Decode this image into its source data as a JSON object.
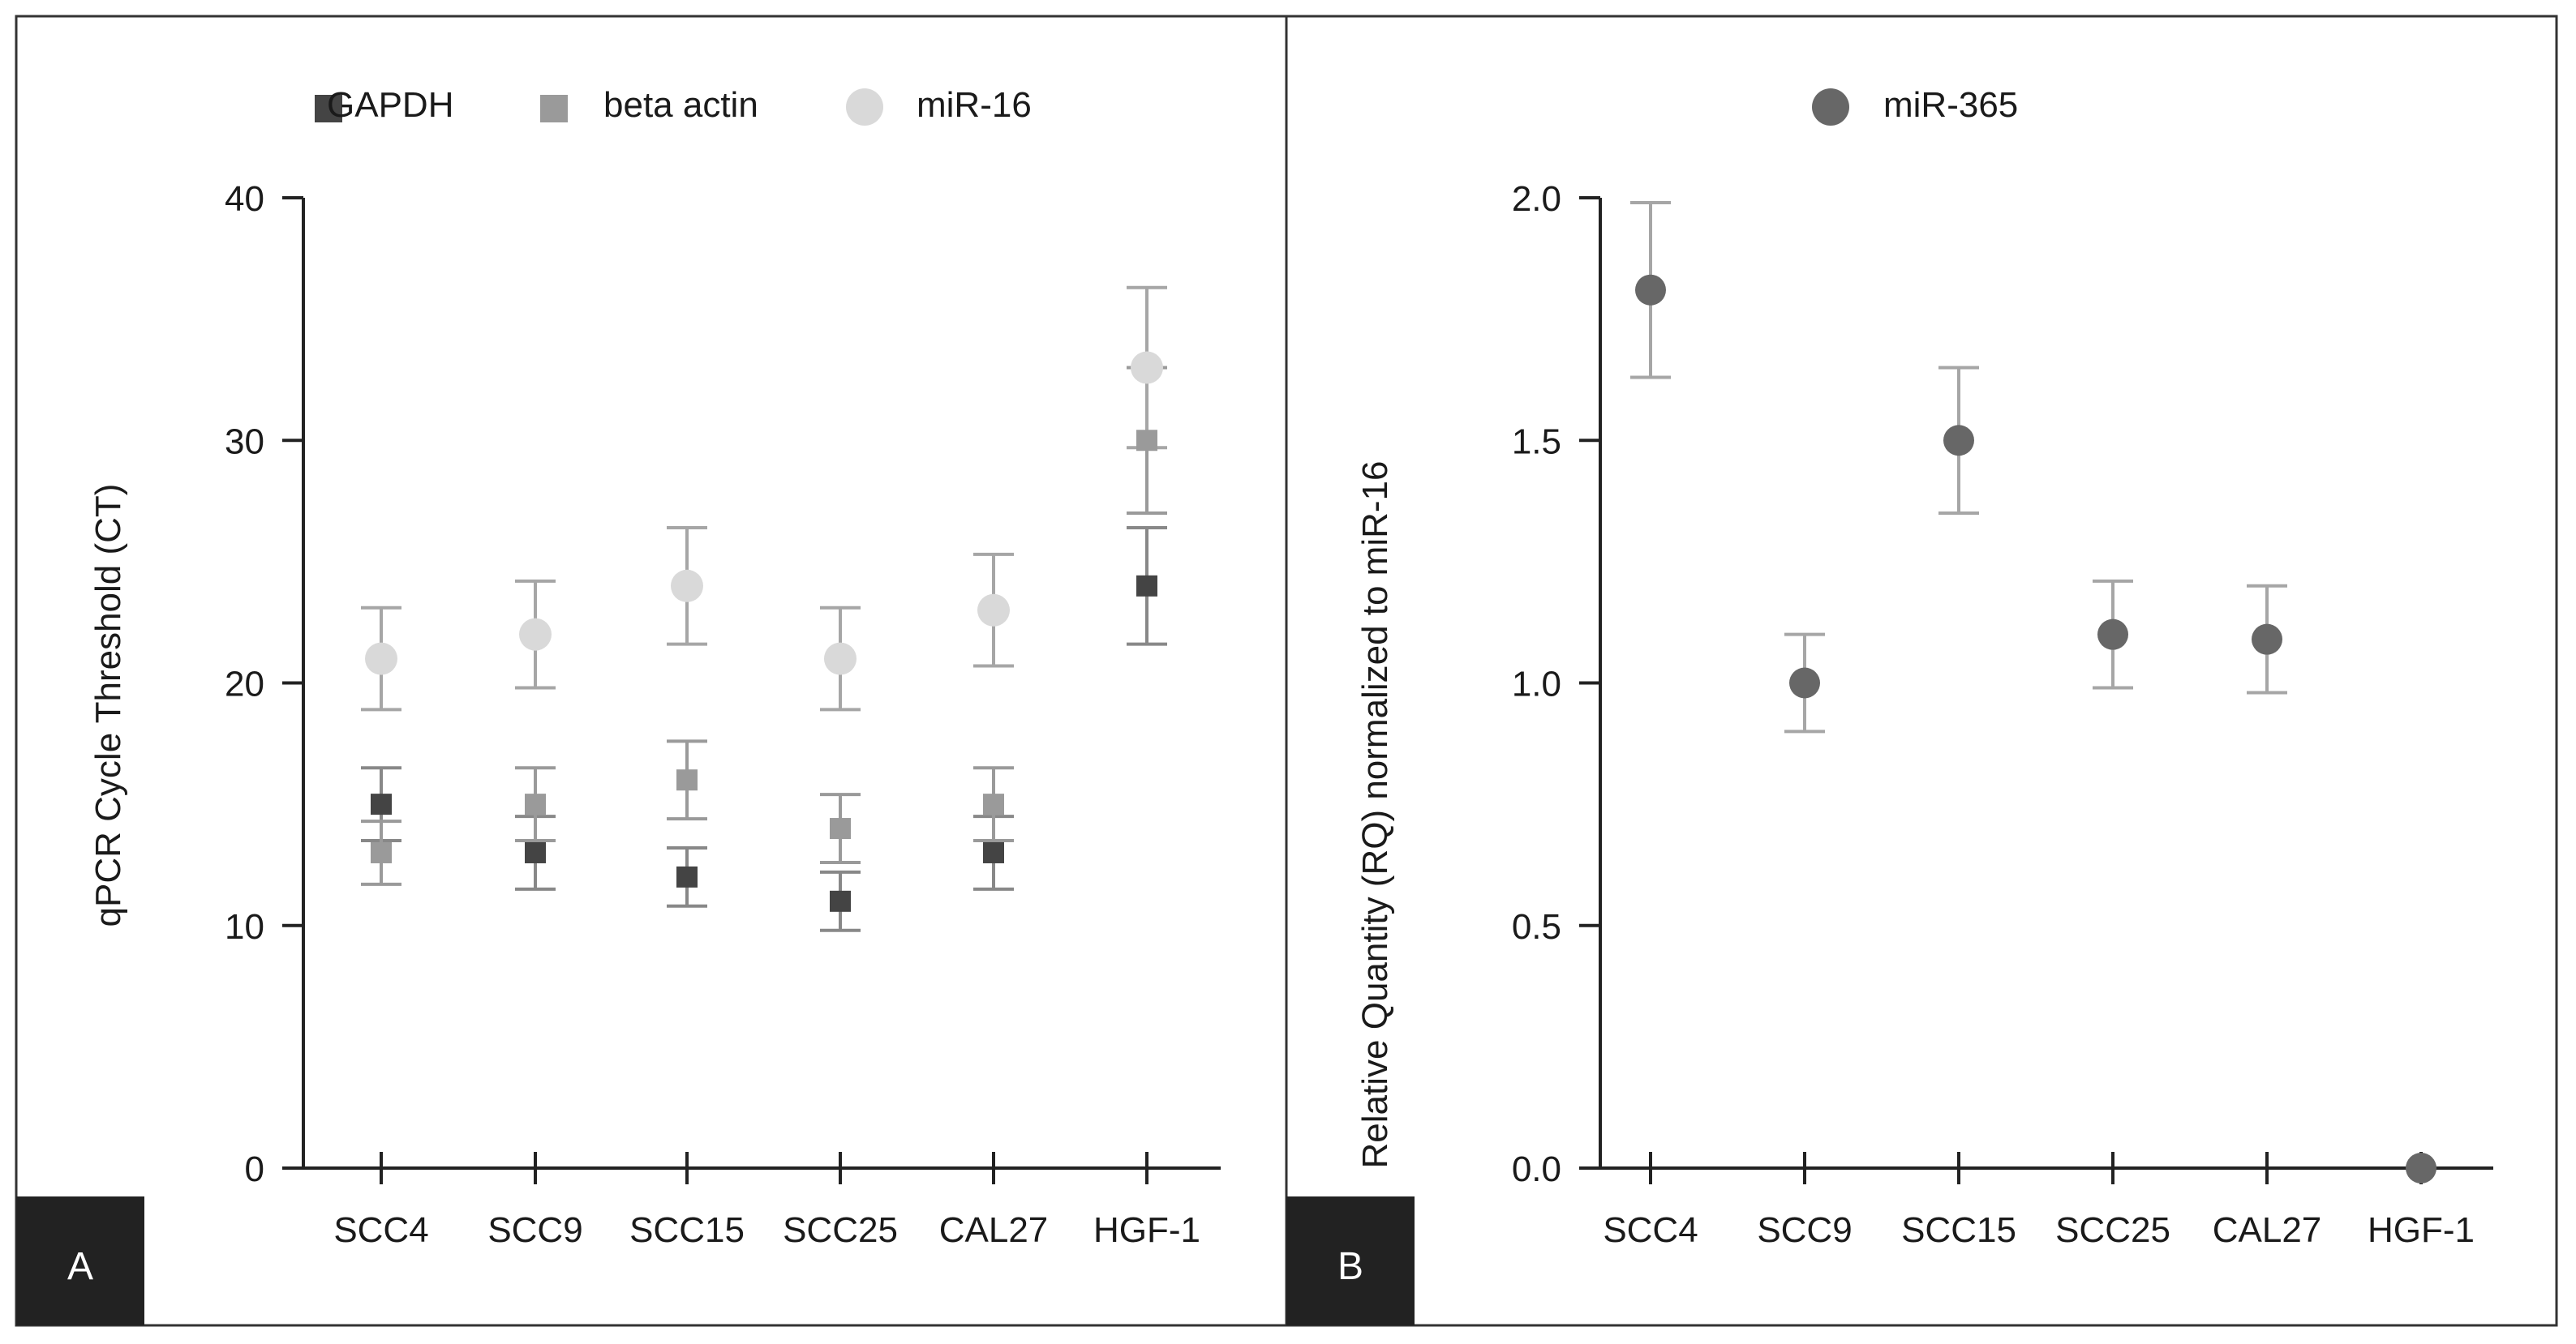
{
  "chart_data": [
    {
      "panel_label": "A",
      "type": "scatter",
      "categories": [
        "SCC4",
        "SCC9",
        "SCC15",
        "SCC25",
        "CAL27",
        "HGF-1"
      ],
      "ylabel": "qPCR Cycle Threshold (CT)",
      "ylim": [
        0,
        40
      ],
      "yticks": [
        0,
        10,
        20,
        30,
        40
      ],
      "legend_position": "top",
      "series": [
        {
          "name": "GAPDH",
          "marker": "square",
          "color": "#444444",
          "errcolor": "#888888",
          "values": [
            15,
            13,
            12,
            11,
            13,
            24
          ],
          "err": [
            1.5,
            1.5,
            1.2,
            1.2,
            1.5,
            2.4
          ]
        },
        {
          "name": "beta actin",
          "marker": "square",
          "color": "#9a9a9a",
          "errcolor": "#9a9a9a",
          "values": [
            13,
            15,
            16,
            14,
            15,
            30
          ],
          "err": [
            1.3,
            1.5,
            1.6,
            1.4,
            1.5,
            3.0
          ]
        },
        {
          "name": "miR-16",
          "marker": "circle",
          "color": "#d9d9d9",
          "errcolor": "#a6a6a6",
          "values": [
            21,
            22,
            24,
            21,
            23,
            33
          ],
          "err": [
            2.1,
            2.2,
            2.4,
            2.1,
            2.3,
            3.3
          ]
        }
      ]
    },
    {
      "panel_label": "B",
      "type": "scatter",
      "categories": [
        "SCC4",
        "SCC9",
        "SCC15",
        "SCC25",
        "CAL27",
        "HGF-1"
      ],
      "ylabel": "Relative Quantity (RQ) normalized to miR-16",
      "ylim": [
        0,
        2.0
      ],
      "yticks": [
        "0.0",
        "0.5",
        "1.0",
        "1.5",
        "2.0"
      ],
      "legend_position": "top",
      "series": [
        {
          "name": "miR-365",
          "marker": "circle",
          "color": "#676767",
          "errcolor": "#a6a6a6",
          "values": [
            1.81,
            1.0,
            1.5,
            1.1,
            1.09,
            0.0
          ],
          "err": [
            0.18,
            0.1,
            0.15,
            0.11,
            0.11,
            0
          ]
        }
      ]
    }
  ]
}
